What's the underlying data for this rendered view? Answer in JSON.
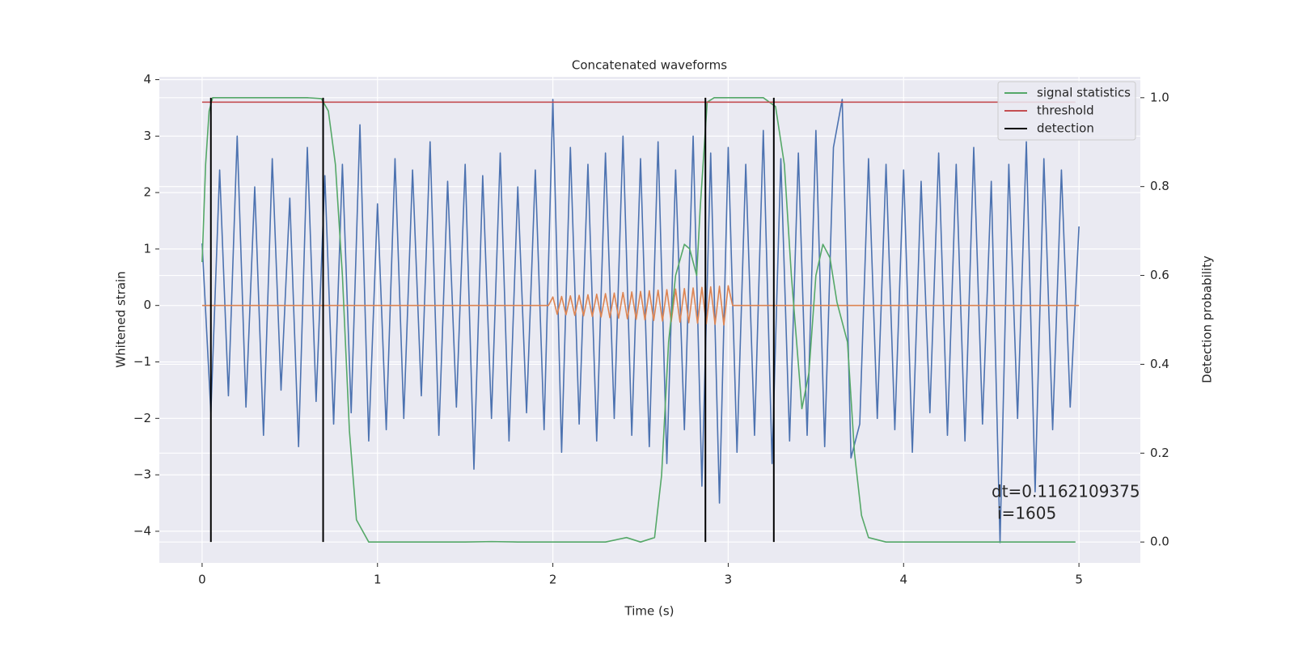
{
  "chart_data": {
    "type": "line",
    "title": "Concatenated waveforms",
    "x_label": "Time (s)",
    "y_label": "Whitened strain",
    "y2_label": "Detection probability",
    "xlim": [
      -0.244,
      5.35
    ],
    "ylim": [
      -4.56,
      4.05
    ],
    "y2lim": [
      -0.047,
      1.047
    ],
    "xticks": [
      0,
      1,
      2,
      3,
      4,
      5
    ],
    "yticks": [
      {
        "value": -4,
        "label": "−4"
      },
      {
        "value": -3,
        "label": "−3"
      },
      {
        "value": -2,
        "label": "−2"
      },
      {
        "value": -1,
        "label": "−1"
      },
      0,
      1,
      2,
      3,
      4
    ],
    "y2ticks": [
      {
        "value": 0,
        "label": "0.0"
      },
      {
        "value": 0.2,
        "label": "0.2"
      },
      {
        "value": 0.4,
        "label": "0.4"
      },
      {
        "value": 0.6,
        "label": "0.6"
      },
      {
        "value": 0.8,
        "label": "0.8"
      },
      {
        "value": 1,
        "label": "1.0"
      }
    ],
    "grid": true,
    "legend": "upper right",
    "annotations": [
      "dt=0.1162109375",
      "i=1605"
    ],
    "series": [
      {
        "style": "line",
        "color": "#4c72b0",
        "x": [
          0,
          0.05,
          0.1,
          0.15,
          0.2,
          0.25,
          0.3,
          0.35,
          0.4,
          0.45,
          0.5,
          0.55,
          0.6,
          0.65,
          0.7,
          0.75,
          0.8,
          0.85,
          0.9,
          0.95,
          1,
          1.05,
          1.1,
          1.15,
          1.2,
          1.25,
          1.3,
          1.35,
          1.4,
          1.45,
          1.5,
          1.55,
          1.6,
          1.65,
          1.7,
          1.75,
          1.8,
          1.85,
          1.9,
          1.95,
          2,
          2.05,
          2.1,
          2.15,
          2.2,
          2.25,
          2.3,
          2.35,
          2.4,
          2.45,
          2.5,
          2.55,
          2.6,
          2.65,
          2.7,
          2.75,
          2.8,
          2.85,
          2.9,
          2.95,
          3,
          3.05,
          3.1,
          3.15,
          3.2,
          3.25,
          3.3,
          3.35,
          3.4,
          3.45,
          3.5,
          3.55,
          3.6,
          3.65,
          3.7,
          3.75,
          3.8,
          3.85,
          3.9,
          3.95,
          4,
          4.05,
          4.1,
          4.15,
          4.2,
          4.25,
          4.3,
          4.35,
          4.4,
          4.45,
          4.5,
          4.55,
          4.6,
          4.65,
          4.7,
          4.75,
          4.8,
          4.85,
          4.9,
          4.95,
          5
        ],
        "values": [
          1.1,
          -1.9,
          2.4,
          -1.6,
          3.0,
          -1.8,
          2.1,
          -2.3,
          2.6,
          -1.5,
          1.9,
          -2.5,
          2.8,
          -1.7,
          2.3,
          -2.1,
          2.5,
          -1.9,
          3.2,
          -2.4,
          1.8,
          -2.2,
          2.6,
          -2.0,
          2.4,
          -1.6,
          2.9,
          -2.3,
          2.2,
          -1.8,
          2.5,
          -2.9,
          2.3,
          -2.0,
          2.7,
          -2.4,
          2.1,
          -1.9,
          2.4,
          -2.2,
          3.65,
          -2.6,
          2.8,
          -2.1,
          2.5,
          -2.4,
          2.7,
          -2.0,
          3.0,
          -2.3,
          2.6,
          -2.5,
          2.9,
          -2.8,
          2.4,
          -2.2,
          3.0,
          -3.2,
          2.7,
          -3.5,
          2.8,
          -2.6,
          2.5,
          -2.3,
          3.1,
          -2.8,
          2.6,
          -2.4,
          2.7,
          -2.3,
          3.1,
          -2.5,
          2.8,
          3.65,
          -2.7,
          -2.1,
          2.6,
          -2.0,
          2.5,
          -2.2,
          2.4,
          -2.6,
          2.2,
          -1.9,
          2.7,
          -2.3,
          2.5,
          -2.4,
          2.8,
          -2.1,
          2.2,
          -4.2,
          2.5,
          -2.0,
          2.9,
          -3.3,
          2.6,
          -2.2,
          2.4,
          -1.8,
          1.4
        ]
      },
      {
        "style": "line",
        "color": "#dd8452",
        "x": [
          0,
          1.975,
          2,
          2.025,
          2.05,
          2.075,
          2.1,
          2.125,
          2.15,
          2.175,
          2.2,
          2.225,
          2.25,
          2.275,
          2.3,
          2.325,
          2.35,
          2.375,
          2.4,
          2.425,
          2.45,
          2.475,
          2.5,
          2.525,
          2.55,
          2.575,
          2.6,
          2.625,
          2.65,
          2.675,
          2.7,
          2.725,
          2.75,
          2.775,
          2.8,
          2.825,
          2.85,
          2.875,
          2.9,
          2.925,
          2.95,
          2.975,
          3,
          3.025,
          5
        ],
        "values": [
          0,
          0,
          0.15,
          -0.155,
          0.16,
          -0.165,
          0.17,
          -0.175,
          0.18,
          -0.185,
          0.19,
          -0.195,
          0.2,
          -0.205,
          0.21,
          -0.215,
          0.22,
          -0.225,
          0.23,
          -0.235,
          0.24,
          -0.245,
          0.25,
          -0.255,
          0.26,
          -0.265,
          0.27,
          -0.275,
          0.28,
          -0.285,
          0.29,
          -0.295,
          0.3,
          -0.305,
          0.31,
          -0.315,
          0.32,
          -0.325,
          0.33,
          -0.335,
          0.34,
          -0.345,
          0.35,
          0,
          0
        ]
      },
      {
        "name": "signal statistics",
        "style": "line",
        "axis": "y2",
        "color": "#55a868",
        "x": [
          0,
          0.02,
          0.04,
          0.06,
          0.1,
          0.3,
          0.6,
          0.68,
          0.72,
          0.76,
          0.8,
          0.84,
          0.88,
          0.95,
          1.5,
          1.65,
          1.8,
          2.3,
          2.42,
          2.5,
          2.58,
          2.62,
          2.66,
          2.7,
          2.75,
          2.78,
          2.82,
          2.84,
          2.88,
          2.92,
          3.0,
          3.2,
          3.27,
          3.32,
          3.36,
          3.42,
          3.46,
          3.5,
          3.54,
          3.58,
          3.62,
          3.68,
          3.72,
          3.76,
          3.8,
          3.9,
          4.2,
          4.98
        ],
        "values": [
          0.63,
          0.85,
          0.97,
          1.0,
          1.0,
          1.0,
          1.0,
          0.998,
          0.97,
          0.85,
          0.6,
          0.25,
          0.05,
          0.0,
          0.0,
          0.001,
          0.0,
          0.0,
          0.01,
          0.0,
          0.01,
          0.15,
          0.45,
          0.6,
          0.67,
          0.66,
          0.6,
          0.75,
          0.99,
          1.0,
          1.0,
          1.0,
          0.98,
          0.85,
          0.6,
          0.3,
          0.38,
          0.6,
          0.67,
          0.64,
          0.54,
          0.45,
          0.2,
          0.06,
          0.01,
          0.0,
          0.0,
          0.0
        ]
      },
      {
        "name": "threshold",
        "style": "line",
        "axis": "y2",
        "color": "#c44e52",
        "x": [
          0,
          4.98
        ],
        "values": [
          0.99,
          0.99
        ]
      },
      {
        "name": "detection",
        "style": "vlines",
        "axis": "y2",
        "color": "#000000",
        "x": [
          0.05,
          0.69,
          2.87,
          3.26
        ],
        "values": [
          1.0,
          1.0,
          1.0,
          1.0
        ]
      }
    ]
  }
}
